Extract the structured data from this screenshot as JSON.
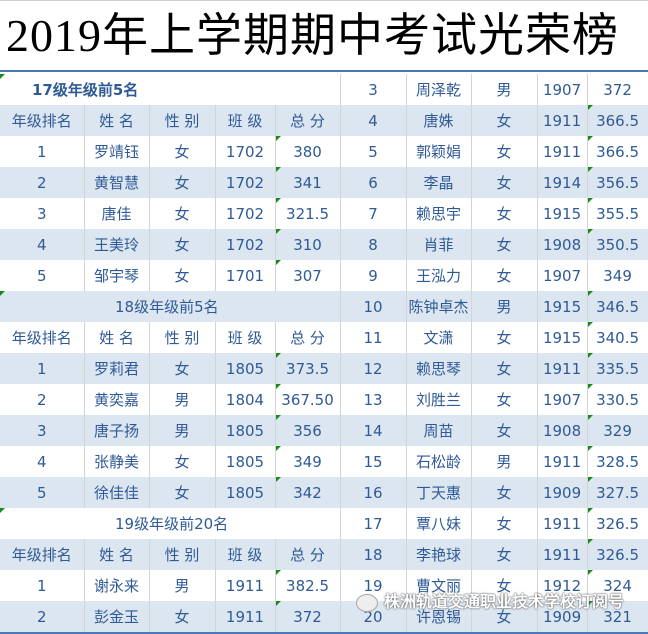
{
  "title": "2019年上学期期中考试光荣榜",
  "colors": {
    "text": "#2f5a96",
    "row_alt": "#dce6f1",
    "accent_line": "#4a7ab5"
  },
  "header": [
    "年级排名",
    "姓 名",
    "性 别",
    "班 级",
    "总 分"
  ],
  "left_rows": [
    {
      "type": "section",
      "label": "17级年级前5名",
      "bold": true
    },
    {
      "type": "header"
    },
    {
      "type": "data",
      "cells": [
        "1",
        "罗靖钰",
        "女",
        "1702",
        "380"
      ]
    },
    {
      "type": "data",
      "cells": [
        "2",
        "黄智慧",
        "女",
        "1702",
        "341"
      ]
    },
    {
      "type": "data",
      "cells": [
        "3",
        "唐佳",
        "女",
        "1702",
        "321.5"
      ]
    },
    {
      "type": "data",
      "cells": [
        "4",
        "王美玲",
        "女",
        "1702",
        "310"
      ]
    },
    {
      "type": "data",
      "cells": [
        "5",
        "邹宇琴",
        "女",
        "1701",
        "307"
      ]
    },
    {
      "type": "section",
      "label": "18级年级前5名"
    },
    {
      "type": "header"
    },
    {
      "type": "data",
      "cells": [
        "1",
        "罗莉君",
        "女",
        "1805",
        "373.5"
      ]
    },
    {
      "type": "data",
      "cells": [
        "2",
        "黄奕嘉",
        "男",
        "1804",
        "367.50"
      ]
    },
    {
      "type": "data",
      "cells": [
        "3",
        "唐子扬",
        "男",
        "1805",
        "356"
      ]
    },
    {
      "type": "data",
      "cells": [
        "4",
        "张静美",
        "女",
        "1805",
        "349"
      ]
    },
    {
      "type": "data",
      "cells": [
        "5",
        "徐佳佳",
        "女",
        "1805",
        "342"
      ]
    },
    {
      "type": "section",
      "label": "19级年级前20名"
    },
    {
      "type": "header"
    },
    {
      "type": "data",
      "cells": [
        "1",
        "谢永来",
        "男",
        "1911",
        "382.5"
      ]
    },
    {
      "type": "data",
      "cells": [
        "2",
        "彭金玉",
        "女",
        "1911",
        "372"
      ]
    }
  ],
  "right_rows": [
    [
      "3",
      "周泽乾",
      "男",
      "1907",
      "372"
    ],
    [
      "4",
      "唐姝",
      "女",
      "1911",
      "366.5"
    ],
    [
      "5",
      "郭颖娟",
      "女",
      "1911",
      "366.5"
    ],
    [
      "6",
      "李晶",
      "女",
      "1914",
      "356.5"
    ],
    [
      "7",
      "赖思宇",
      "女",
      "1915",
      "355.5"
    ],
    [
      "8",
      "肖菲",
      "女",
      "1908",
      "350.5"
    ],
    [
      "9",
      "王泓力",
      "女",
      "1907",
      "349"
    ],
    [
      "10",
      "陈钟卓杰",
      "男",
      "1915",
      "346.5"
    ],
    [
      "11",
      "文潇",
      "女",
      "1915",
      "340.5"
    ],
    [
      "12",
      "赖思琴",
      "女",
      "1911",
      "335.5"
    ],
    [
      "13",
      "刘胜兰",
      "女",
      "1907",
      "330.5"
    ],
    [
      "14",
      "周苗",
      "女",
      "1908",
      "329"
    ],
    [
      "15",
      "石松龄",
      "男",
      "1911",
      "328.5"
    ],
    [
      "16",
      "丁天惠",
      "女",
      "1909",
      "327.5"
    ],
    [
      "17",
      "覃八妹",
      "女",
      "1911",
      "326.5"
    ],
    [
      "18",
      "李艳球",
      "女",
      "1911",
      "326.5"
    ],
    [
      "19",
      "曹文丽",
      "女",
      "1912",
      "324"
    ],
    [
      "20",
      "许恩锡",
      "女",
      "1909",
      "321"
    ]
  ],
  "watermark": "株洲轨道交通职业技术学校订阅号"
}
